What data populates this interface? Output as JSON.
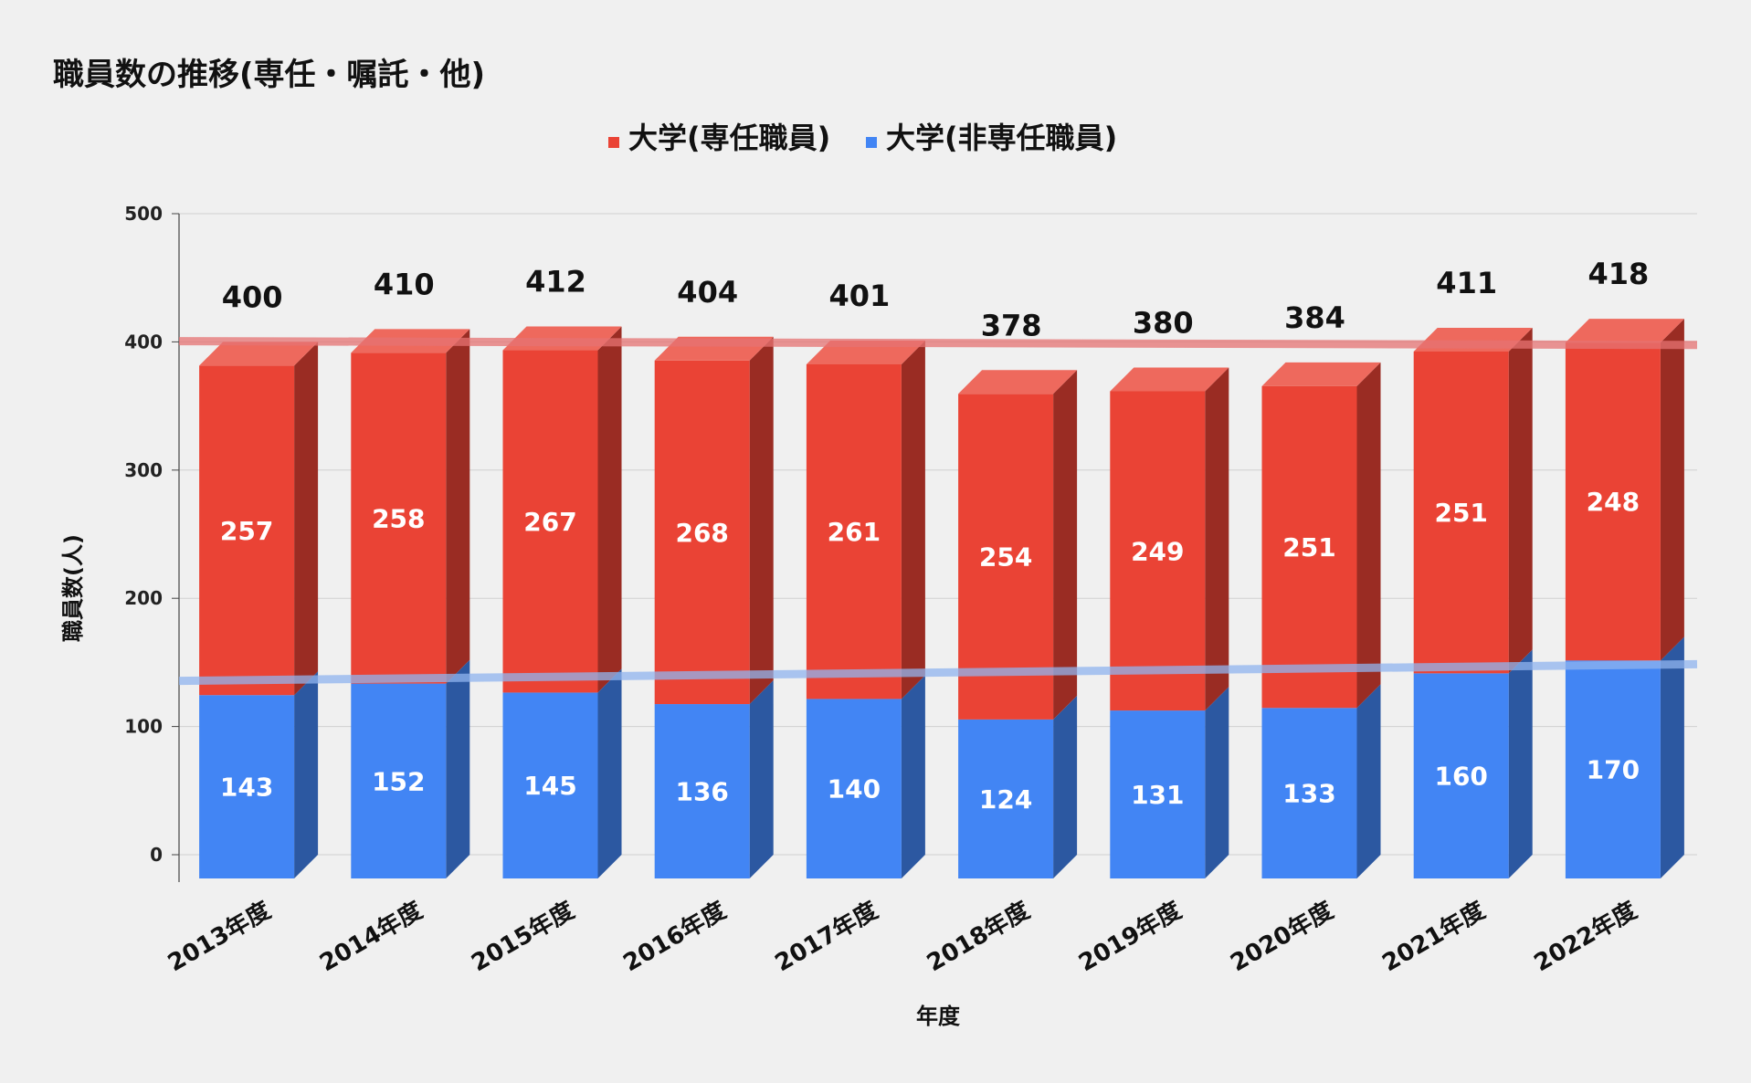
{
  "title": "職員数の推移(専任・嘱託・他)",
  "colors": {
    "series_full_time": "#ea4335",
    "series_non_full_time": "#4285f4",
    "trend_full_time": "#e57373",
    "trend_non_full_time": "#90b4ef"
  },
  "chart_data": {
    "type": "bar",
    "stacked": true,
    "style": "3d",
    "categories": [
      "2013年度",
      "2014年度",
      "2015年度",
      "2016年度",
      "2017年度",
      "2018年度",
      "2019年度",
      "2020年度",
      "2021年度",
      "2022年度"
    ],
    "series": [
      {
        "name": "大学(専任職員)",
        "values": [
          257,
          258,
          267,
          268,
          261,
          254,
          249,
          251,
          251,
          248
        ]
      },
      {
        "name": "大学(非専任職員)",
        "values": [
          143,
          152,
          145,
          136,
          140,
          124,
          131,
          133,
          160,
          170
        ]
      }
    ],
    "totals": [
      400,
      410,
      412,
      404,
      401,
      378,
      380,
      384,
      411,
      418
    ],
    "trendlines": [
      {
        "series": "大学(専任職員)",
        "from": 402,
        "to": 399
      },
      {
        "series": "大学(非専任職員)",
        "from": 137,
        "to": 150
      }
    ],
    "xlabel": "年度",
    "ylabel": "職員数(人)",
    "ylim": [
      0,
      500
    ],
    "yticks": [
      0,
      100,
      200,
      300,
      400,
      500
    ],
    "legend": "top-center",
    "grid": true
  }
}
